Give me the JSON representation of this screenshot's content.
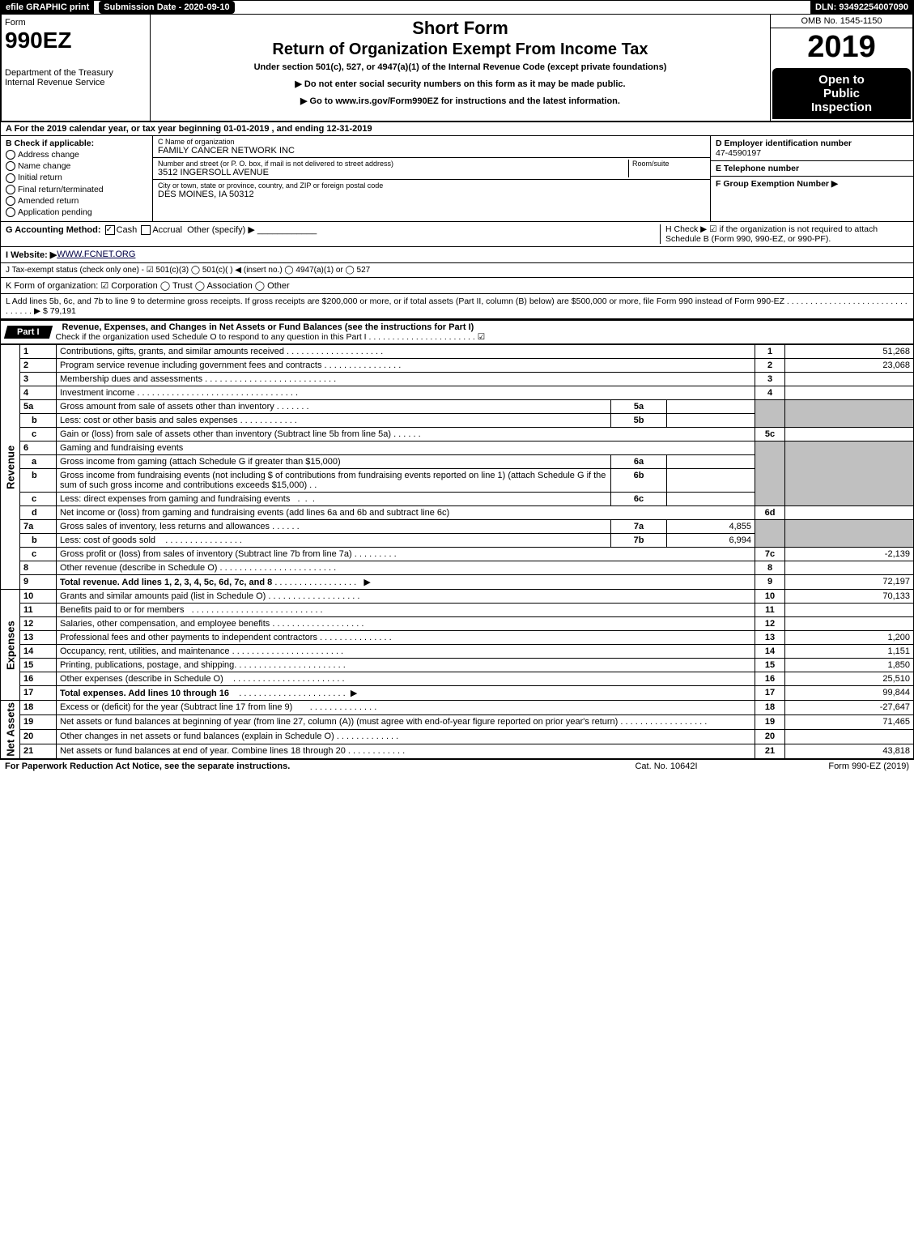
{
  "topbar": {
    "efile": "efile GRAPHIC print",
    "submission": "Submission Date - 2020-09-10",
    "dln": "DLN: 93492254007090"
  },
  "header": {
    "form_word": "Form",
    "form_no": "990EZ",
    "dept1": "Department of the Treasury",
    "dept2": "Internal Revenue Service",
    "short_form": "Short Form",
    "title": "Return of Organization Exempt From Income Tax",
    "subtitle": "Under section 501(c), 527, or 4947(a)(1) of the Internal Revenue Code (except private foundations)",
    "warn": "▶ Do not enter social security numbers on this form as it may be made public.",
    "goto": "▶ Go to www.irs.gov/Form990EZ for instructions and the latest information.",
    "omb": "OMB No. 1545-1150",
    "year": "2019",
    "open1": "Open to",
    "open2": "Public",
    "open3": "Inspection"
  },
  "cal_year": "A  For the 2019 calendar year, or tax year beginning 01-01-2019 , and ending 12-31-2019",
  "sectionB": {
    "label": "B  Check if applicable:",
    "addr": "Address change",
    "name": "Name change",
    "init": "Initial return",
    "final": "Final return/terminated",
    "amend": "Amended return",
    "app": "Application pending"
  },
  "sectionC": {
    "name_lbl": "C Name of organization",
    "name": "FAMILY CANCER NETWORK INC",
    "street_lbl": "Number and street (or P. O. box, if mail is not delivered to street address)",
    "street": "3512 INGERSOLL AVENUE",
    "room_lbl": "Room/suite",
    "city_lbl": "City or town, state or province, country, and ZIP or foreign postal code",
    "city": "DES MOINES, IA  50312"
  },
  "sectionD": {
    "ein_lbl": "D Employer identification number",
    "ein": "47-4590197",
    "tel_lbl": "E Telephone number",
    "grp_lbl": "F Group Exemption Number  ▶"
  },
  "rowG": {
    "label": "G Accounting Method:",
    "cash": "Cash",
    "accrual": "Accrual",
    "other": "Other (specify) ▶"
  },
  "rowH": "H  Check ▶ ☑ if the organization is not required to attach Schedule B (Form 990, 990-EZ, or 990-PF).",
  "rowI_label": "I Website: ▶",
  "rowI_val": "WWW.FCNET.ORG",
  "rowJ": "J Tax-exempt status (check only one) - ☑ 501(c)(3)  ◯ 501(c)(  ) ◀ (insert no.)  ◯ 4947(a)(1) or  ◯ 527",
  "rowK": "K Form of organization:   ☑ Corporation   ◯ Trust   ◯ Association   ◯ Other",
  "rowL": "L Add lines 5b, 6c, and 7b to line 9 to determine gross receipts. If gross receipts are $200,000 or more, or if total assets (Part II, column (B) below) are $500,000 or more, file Form 990 instead of Form 990-EZ . . . . . . . . . . . . . . . . . . . . . . . . . . . . . . . . ▶ $ 79,191",
  "part1": {
    "tab": "Part I",
    "title": "Revenue, Expenses, and Changes in Net Assets or Fund Balances (see the instructions for Part I)",
    "check_line": "Check if the organization used Schedule O to respond to any question in this Part I . . . . . . . . . . . . . . . . . . . . . . . ☑"
  },
  "side": {
    "rev": "Revenue",
    "exp": "Expenses",
    "net": "Net Assets"
  },
  "lines": {
    "l1": {
      "no": "1",
      "desc": "Contributions, gifts, grants, and similar amounts received",
      "col": "1",
      "val": "51,268"
    },
    "l2": {
      "no": "2",
      "desc": "Program service revenue including government fees and contracts",
      "col": "2",
      "val": "23,068"
    },
    "l3": {
      "no": "3",
      "desc": "Membership dues and assessments",
      "col": "3",
      "val": ""
    },
    "l4": {
      "no": "4",
      "desc": "Investment income",
      "col": "4",
      "val": ""
    },
    "l5a": {
      "no": "5a",
      "desc": "Gross amount from sale of assets other than inventory",
      "box": "5a",
      "boxval": ""
    },
    "l5b": {
      "no": "b",
      "desc": "Less: cost or other basis and sales expenses",
      "box": "5b",
      "boxval": ""
    },
    "l5c": {
      "no": "c",
      "desc": "Gain or (loss) from sale of assets other than inventory (Subtract line 5b from line 5a)",
      "col": "5c",
      "val": ""
    },
    "l6": {
      "no": "6",
      "desc": "Gaming and fundraising events"
    },
    "l6a": {
      "no": "a",
      "desc": "Gross income from gaming (attach Schedule G if greater than $15,000)",
      "box": "6a",
      "boxval": ""
    },
    "l6b": {
      "no": "b",
      "desc": "Gross income from fundraising events (not including $                       of contributions from fundraising events reported on line 1) (attach Schedule G if the sum of such gross income and contributions exceeds $15,000)",
      "box": "6b",
      "boxval": ""
    },
    "l6c": {
      "no": "c",
      "desc": "Less: direct expenses from gaming and fundraising events",
      "box": "6c",
      "boxval": ""
    },
    "l6d": {
      "no": "d",
      "desc": "Net income or (loss) from gaming and fundraising events (add lines 6a and 6b and subtract line 6c)",
      "col": "6d",
      "val": ""
    },
    "l7a": {
      "no": "7a",
      "desc": "Gross sales of inventory, less returns and allowances",
      "box": "7a",
      "boxval": "4,855"
    },
    "l7b": {
      "no": "b",
      "desc": "Less: cost of goods sold",
      "box": "7b",
      "boxval": "6,994"
    },
    "l7c": {
      "no": "c",
      "desc": "Gross profit or (loss) from sales of inventory (Subtract line 7b from line 7a)",
      "col": "7c",
      "val": "-2,139"
    },
    "l8": {
      "no": "8",
      "desc": "Other revenue (describe in Schedule O)",
      "col": "8",
      "val": ""
    },
    "l9": {
      "no": "9",
      "desc": "Total revenue. Add lines 1, 2, 3, 4, 5c, 6d, 7c, and 8",
      "col": "9",
      "val": "72,197",
      "arrow": "▶"
    },
    "l10": {
      "no": "10",
      "desc": "Grants and similar amounts paid (list in Schedule O)",
      "col": "10",
      "val": "70,133"
    },
    "l11": {
      "no": "11",
      "desc": "Benefits paid to or for members",
      "col": "11",
      "val": ""
    },
    "l12": {
      "no": "12",
      "desc": "Salaries, other compensation, and employee benefits",
      "col": "12",
      "val": ""
    },
    "l13": {
      "no": "13",
      "desc": "Professional fees and other payments to independent contractors",
      "col": "13",
      "val": "1,200"
    },
    "l14": {
      "no": "14",
      "desc": "Occupancy, rent, utilities, and maintenance",
      "col": "14",
      "val": "1,151"
    },
    "l15": {
      "no": "15",
      "desc": "Printing, publications, postage, and shipping.",
      "col": "15",
      "val": "1,850"
    },
    "l16": {
      "no": "16",
      "desc": "Other expenses (describe in Schedule O)",
      "col": "16",
      "val": "25,510"
    },
    "l17": {
      "no": "17",
      "desc": "Total expenses. Add lines 10 through 16",
      "col": "17",
      "val": "99,844",
      "arrow": "▶"
    },
    "l18": {
      "no": "18",
      "desc": "Excess or (deficit) for the year (Subtract line 17 from line 9)",
      "col": "18",
      "val": "-27,647"
    },
    "l19": {
      "no": "19",
      "desc": "Net assets or fund balances at beginning of year (from line 27, column (A)) (must agree with end-of-year figure reported on prior year's return)",
      "col": "19",
      "val": "71,465"
    },
    "l20": {
      "no": "20",
      "desc": "Other changes in net assets or fund balances (explain in Schedule O)",
      "col": "20",
      "val": ""
    },
    "l21": {
      "no": "21",
      "desc": "Net assets or fund balances at end of year. Combine lines 18 through 20",
      "col": "21",
      "val": "43,818"
    }
  },
  "footer": {
    "left": "For Paperwork Reduction Act Notice, see the separate instructions.",
    "mid": "Cat. No. 10642I",
    "right": "Form 990-EZ (2019)"
  }
}
